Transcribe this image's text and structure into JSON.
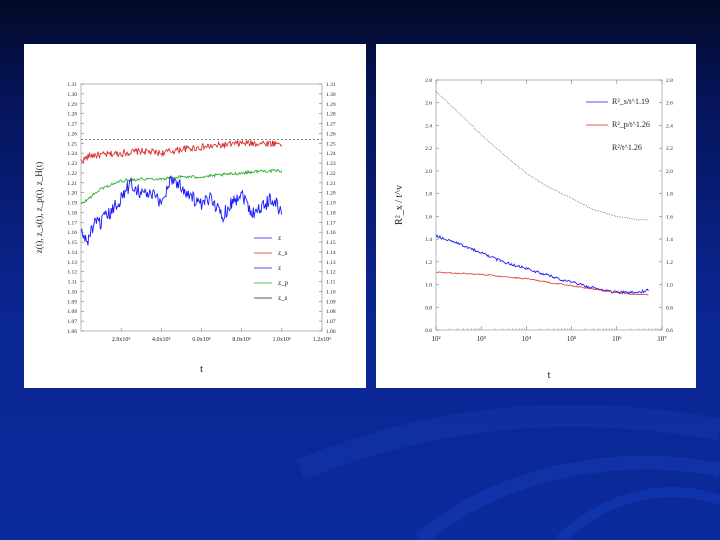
{
  "chart_data": [
    {
      "type": "line",
      "xlabel": "t",
      "ylabel": "z(t), z_s(t), z_p(t), z_H(t)",
      "xlim": [
        0,
        1200000
      ],
      "ylim": [
        1.06,
        1.31
      ],
      "x_ticks": [
        200000,
        400000,
        600000,
        800000,
        1000000,
        1200000
      ],
      "x_tick_labels": [
        "2.0x10⁵",
        "4.0x10⁵",
        "6.0x10⁵",
        "8.0x10⁵",
        "1.0x10⁶",
        "1.2x10⁶"
      ],
      "y_ticks": [
        1.06,
        1.07,
        1.08,
        1.09,
        1.1,
        1.11,
        1.12,
        1.13,
        1.14,
        1.15,
        1.16,
        1.17,
        1.18,
        1.19,
        1.2,
        1.21,
        1.22,
        1.23,
        1.24,
        1.25,
        1.26,
        1.27,
        1.28,
        1.29,
        1.3,
        1.31
      ],
      "y_tick_labels": [
        "1.06",
        "1.07",
        "1.08",
        "1.09",
        "1.10",
        "1.11",
        "1.12",
        "1.13",
        "1.14",
        "1.15",
        "1.16",
        "1.17",
        "1.18",
        "1.19",
        "1.20",
        "1.21",
        "1.22",
        "1.23",
        "1.24",
        "1.25",
        "1.26",
        "1.27",
        "1.28",
        "1.29",
        "1.30",
        "1.31"
      ],
      "legend_position": "bottom-right",
      "legend": [
        {
          "label": "z",
          "color": "#1a1aff"
        },
        {
          "label": "z_s",
          "color": "#d42020"
        },
        {
          "label": "z",
          "color": "#1a1aff"
        },
        {
          "label": "z_p",
          "color": "#22aa22"
        },
        {
          "label": "z_s",
          "color": "#222222"
        }
      ],
      "reference_line": {
        "y": 1.254,
        "style": "dashed"
      },
      "series": [
        {
          "color": "#d42020",
          "x": [
            0,
            50000,
            100000,
            200000,
            300000,
            400000,
            500000,
            600000,
            700000,
            800000,
            900000,
            1000000
          ],
          "y": [
            1.232,
            1.238,
            1.238,
            1.24,
            1.242,
            1.24,
            1.244,
            1.246,
            1.248,
            1.25,
            1.25,
            1.25
          ]
        },
        {
          "color": "#22aa22",
          "x": [
            0,
            50000,
            100000,
            200000,
            300000,
            400000,
            500000,
            600000,
            700000,
            800000,
            900000,
            1000000
          ],
          "y": [
            1.188,
            1.196,
            1.204,
            1.212,
            1.214,
            1.214,
            1.216,
            1.216,
            1.218,
            1.22,
            1.222,
            1.222
          ]
        },
        {
          "color": "#1a1aff",
          "x": [
            0,
            30000,
            60000,
            100000,
            150000,
            200000,
            250000,
            300000,
            350000,
            400000,
            450000,
            500000,
            550000,
            600000,
            650000,
            700000,
            750000,
            800000,
            850000,
            900000,
            950000,
            1000000
          ],
          "y": [
            1.16,
            1.15,
            1.166,
            1.17,
            1.18,
            1.195,
            1.21,
            1.2,
            1.198,
            1.19,
            1.215,
            1.206,
            1.196,
            1.186,
            1.196,
            1.176,
            1.19,
            1.2,
            1.18,
            1.185,
            1.195,
            1.18
          ]
        }
      ]
    },
    {
      "type": "line",
      "xlabel": "t",
      "ylabel": "R²_x / t^v",
      "xscale": "log",
      "xlim": [
        100,
        10000000
      ],
      "ylim": [
        0.6,
        2.8
      ],
      "x_ticks": [
        100,
        1000,
        10000,
        100000,
        1000000,
        10000000
      ],
      "x_tick_labels": [
        "10²",
        "10³",
        "10⁴",
        "10⁵",
        "10⁶",
        "10⁷"
      ],
      "y_ticks": [
        0.6,
        0.8,
        1.0,
        1.2,
        1.4,
        1.6,
        1.8,
        2.0,
        2.2,
        2.4,
        2.6,
        2.8
      ],
      "y_tick_labels": [
        "0.6",
        "0.8",
        "1.0",
        "1.2",
        "1.4",
        "1.6",
        "1.8",
        "2.0",
        "2.2",
        "2.4",
        "2.6",
        "2.8"
      ],
      "legend_position": "top-right",
      "legend": [
        {
          "label": "R²_s/t^1.19",
          "color": "#1a1aff"
        },
        {
          "label": "R²_p/t^1.26",
          "color": "#d42020"
        },
        {
          "label": "R²/t^1.26",
          "color": "#222222"
        }
      ],
      "series": [
        {
          "color": "#222222",
          "x": [
            100,
            300,
            1000,
            3000,
            10000,
            30000,
            100000,
            300000,
            1000000,
            3000000,
            5000000
          ],
          "y": [
            2.7,
            2.52,
            2.32,
            2.15,
            1.98,
            1.86,
            1.76,
            1.66,
            1.6,
            1.57,
            1.57
          ]
        },
        {
          "color": "#1a1aff",
          "x": [
            100,
            300,
            1000,
            3000,
            10000,
            30000,
            100000,
            300000,
            1000000,
            3000000,
            5000000
          ],
          "y": [
            1.43,
            1.36,
            1.28,
            1.2,
            1.14,
            1.08,
            1.02,
            0.97,
            0.93,
            0.93,
            0.95
          ]
        },
        {
          "color": "#d42020",
          "x": [
            100,
            300,
            1000,
            3000,
            10000,
            30000,
            100000,
            300000,
            1000000,
            3000000,
            5000000
          ],
          "y": [
            1.11,
            1.1,
            1.09,
            1.07,
            1.05,
            1.02,
            0.99,
            0.96,
            0.93,
            0.91,
            0.91
          ]
        }
      ]
    }
  ]
}
